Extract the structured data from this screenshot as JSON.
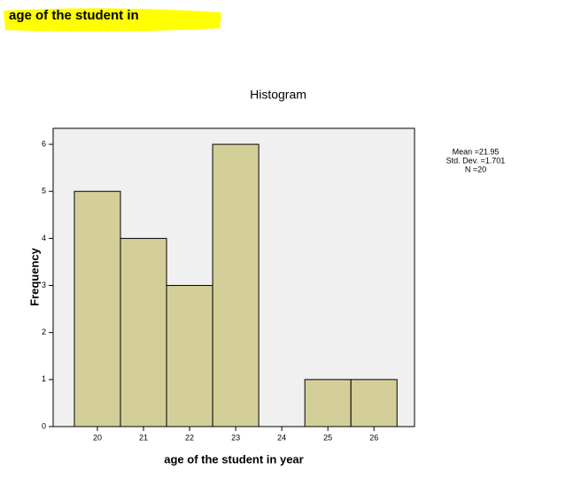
{
  "heading": "age of the student in",
  "chart_data": {
    "type": "histogram",
    "title": "Histogram",
    "x_label": "age of the student in year",
    "y_label": "Frequency",
    "bins": [
      19.5,
      20.5,
      21.5,
      22.5,
      23.5,
      24.5,
      25.5,
      26.5
    ],
    "values": [
      5,
      4,
      3,
      6,
      0,
      1,
      1
    ],
    "color": "#d4cf99",
    "xlim": [
      19.04,
      26.88
    ],
    "xticks": [
      20,
      21,
      22,
      23,
      24,
      25,
      26
    ],
    "ylim": [
      0,
      6.34
    ],
    "yticks": [
      0,
      1,
      2,
      3,
      4,
      5,
      6
    ],
    "annotations": [
      "Mean =21.95",
      "Std. Dev. =1.701",
      "N =20"
    ]
  }
}
